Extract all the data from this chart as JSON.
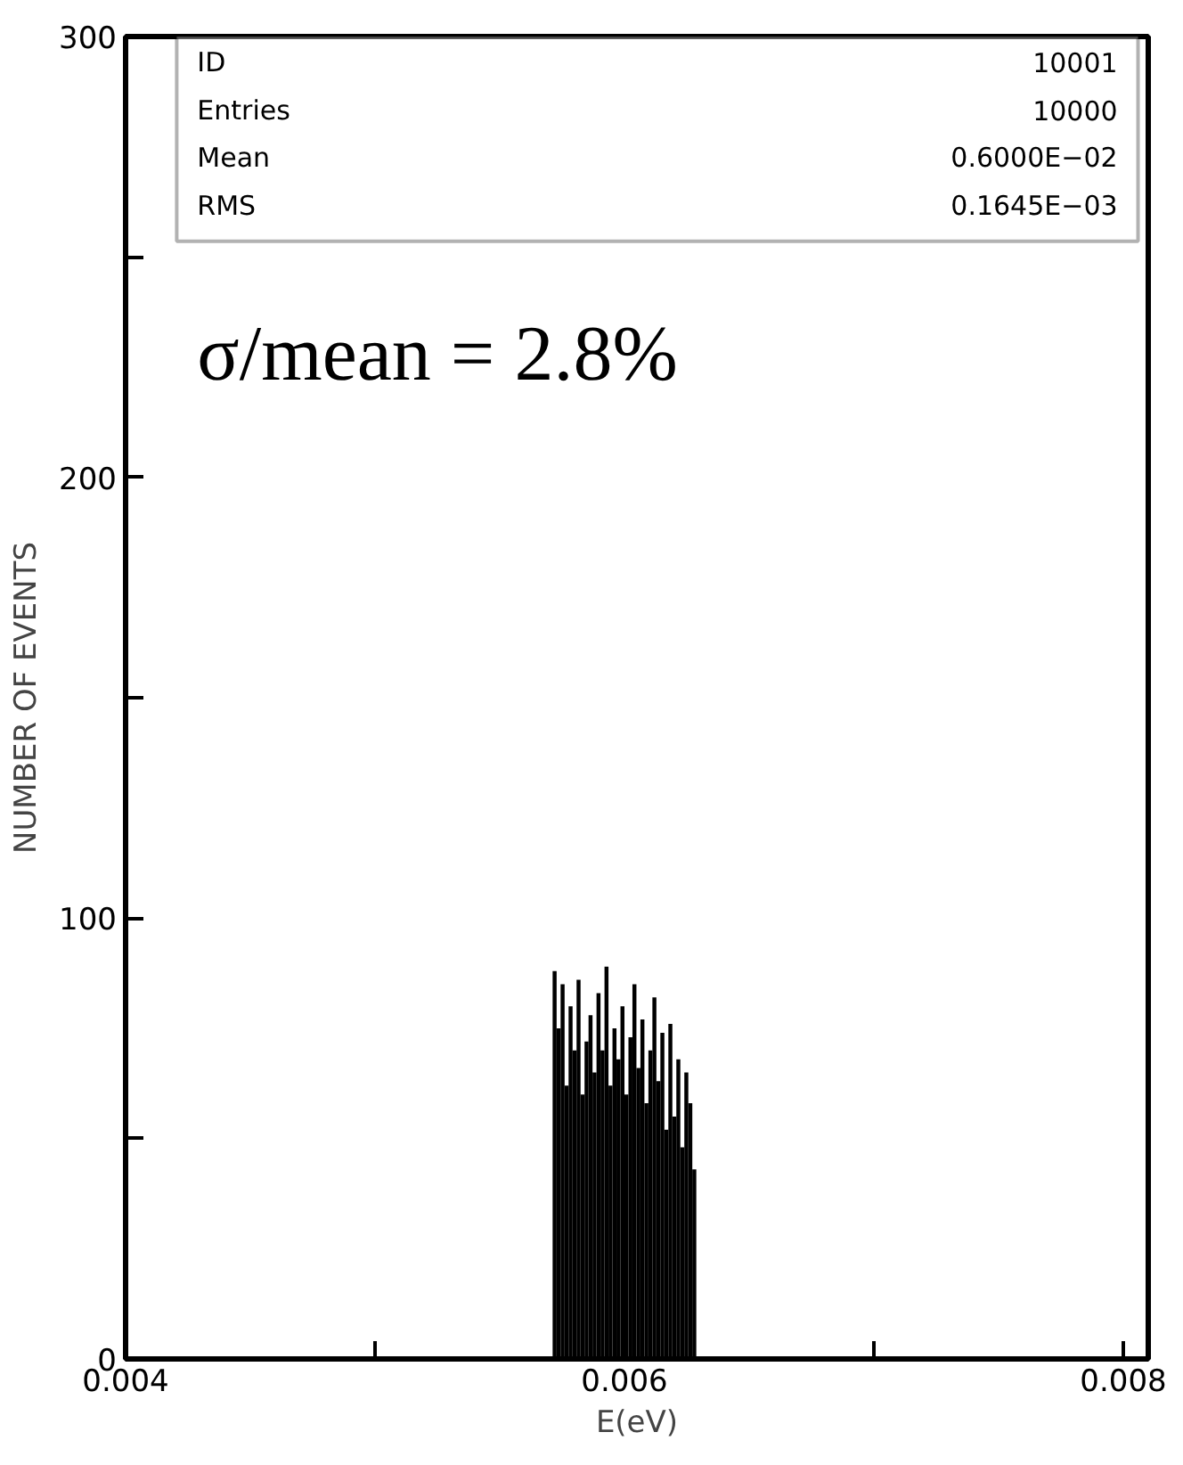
{
  "chart_data": {
    "type": "histogram",
    "xlabel": "E(eV)",
    "ylabel": "NUMBER OF EVENTS",
    "bins": [
      0.005712,
      0.005728,
      0.005744,
      0.00576,
      0.005776,
      0.005792,
      0.005808,
      0.005824,
      0.00584,
      0.005856,
      0.005872,
      0.005888,
      0.005904,
      0.00592,
      0.005936,
      0.005952,
      0.005968,
      0.005984,
      0.006,
      0.006016,
      0.006032,
      0.006048,
      0.006064,
      0.00608,
      0.006096,
      0.006112,
      0.006128,
      0.006144,
      0.00616,
      0.006176,
      0.006192,
      0.006208,
      0.006224,
      0.00624,
      0.006256,
      0.006272,
      0.006288
    ],
    "values": [
      88,
      75,
      85,
      62,
      80,
      70,
      86,
      60,
      72,
      78,
      65,
      83,
      70,
      89,
      62,
      75,
      68,
      80,
      60,
      73,
      85,
      66,
      77,
      58,
      70,
      82,
      63,
      74,
      52,
      76,
      55,
      68,
      48,
      65,
      58,
      43
    ],
    "color": "#000000",
    "xlim": [
      0.004,
      0.0081
    ],
    "ylim": [
      0,
      300
    ],
    "xticks": [
      0.004,
      {
        "value": 0.005,
        "label": null
      },
      0.006,
      {
        "value": 0.007,
        "label": null
      },
      0.008
    ],
    "yticks": [
      {
        "value": 0,
        "label": "0"
      },
      {
        "value": 50,
        "label": null
      },
      100,
      {
        "value": 150,
        "label": null
      },
      200,
      {
        "value": 250,
        "label": null
      },
      300
    ],
    "grid": false,
    "annotations": [
      "ID",
      "10001",
      "Entries",
      "10000",
      "Mean",
      "0.6000E−02",
      "RMS",
      "0.1645E−03",
      "σ/mean = 2.8%"
    ]
  }
}
